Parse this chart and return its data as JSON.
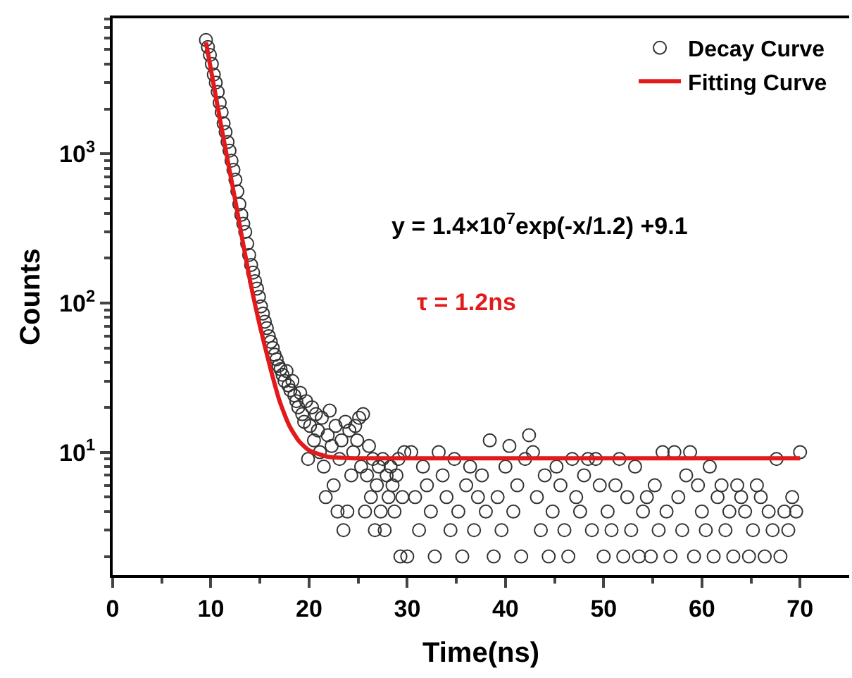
{
  "chart_data": {
    "type": "scatter",
    "xlabel": "Time(ns)",
    "ylabel": "Counts",
    "log": "y",
    "legend": "top right",
    "xlim": [
      0,
      75
    ],
    "xticks": [
      0,
      {
        "value": 5,
        "label": null
      },
      10,
      {
        "value": 15,
        "label": null
      },
      20,
      {
        "value": 25,
        "label": null
      },
      30,
      {
        "value": 35,
        "label": null
      },
      40,
      {
        "value": 45,
        "label": null
      },
      50,
      {
        "value": 55,
        "label": null
      },
      60,
      {
        "value": 65,
        "label": null
      },
      70
    ],
    "ylim": [
      1.5,
      8100
    ],
    "yticks": [
      {
        "value": 2,
        "label": null
      },
      {
        "value": 3,
        "label": null
      },
      {
        "value": 4,
        "label": null
      },
      {
        "value": 5,
        "label": null
      },
      {
        "value": 6,
        "label": null
      },
      {
        "value": 7,
        "label": null
      },
      {
        "value": 8,
        "label": null
      },
      {
        "value": 9,
        "label": null
      },
      {
        "value": 10,
        "label": "10$^{1}$"
      },
      {
        "value": 20,
        "label": null
      },
      {
        "value": 30,
        "label": null
      },
      {
        "value": 40,
        "label": null
      },
      {
        "value": 50,
        "label": null
      },
      {
        "value": 60,
        "label": null
      },
      {
        "value": 70,
        "label": null
      },
      {
        "value": 80,
        "label": null
      },
      {
        "value": 90,
        "label": null
      },
      {
        "value": 100,
        "label": "10$^{2}$"
      },
      {
        "value": 200,
        "label": null
      },
      {
        "value": 300,
        "label": null
      },
      {
        "value": 400,
        "label": null
      },
      {
        "value": 500,
        "label": null
      },
      {
        "value": 600,
        "label": null
      },
      {
        "value": 700,
        "label": null
      },
      {
        "value": 800,
        "label": null
      },
      {
        "value": 900,
        "label": null
      },
      {
        "value": 1000,
        "label": "10$^{3}$"
      },
      {
        "value": 2000,
        "label": null
      },
      {
        "value": 3000,
        "label": null
      },
      {
        "value": 4000,
        "label": null
      },
      {
        "value": 5000,
        "label": null
      },
      {
        "value": 6000,
        "label": null
      },
      {
        "value": 7000,
        "label": null
      },
      {
        "value": 8000,
        "label": null
      }
    ],
    "annotations": [
      "y = 1.4×10$^{7}$exp(-x/1.2) +9.1",
      "τ = 1.2ns"
    ],
    "series": [
      {
        "name": "Decay Curve",
        "marker": "circle",
        "color": "#333333",
        "x": [
          9.5,
          9.7,
          9.9,
          10.1,
          10.3,
          10.5,
          10.7,
          10.9,
          11.1,
          11.3,
          11.5,
          11.7,
          11.9,
          12.1,
          12.3,
          12.5,
          12.7,
          12.9,
          13.1,
          13.3,
          13.5,
          13.7,
          13.9,
          14.1,
          14.3,
          14.5,
          14.7,
          14.9,
          15.1,
          15.3,
          15.5,
          15.7,
          15.9,
          16.1,
          16.3,
          16.5,
          16.7,
          16.9,
          17.1,
          17.3,
          17.5,
          17.7,
          17.9,
          18.1,
          18.3,
          18.5,
          18.7,
          18.9,
          19.1,
          19.3,
          19.5,
          19.7,
          19.9,
          20.1,
          20.3,
          20.5,
          20.7,
          20.9,
          21.1,
          21.3,
          21.5,
          21.7,
          21.9,
          22.1,
          22.3,
          22.5,
          22.7,
          22.9,
          23.1,
          23.3,
          23.5,
          23.7,
          23.9,
          24.1,
          24.3,
          24.5,
          24.7,
          24.9,
          25.1,
          25.3,
          25.5,
          25.7,
          25.9,
          26.1,
          26.3,
          26.5,
          26.7,
          26.9,
          27.1,
          27.3,
          27.5,
          27.7,
          27.9,
          28.1,
          28.3,
          28.5,
          28.7,
          28.9,
          29.1,
          29.3,
          29.5,
          29.7,
          30.0,
          30.4,
          30.8,
          31.2,
          31.6,
          32.0,
          32.4,
          32.8,
          33.2,
          33.6,
          34.0,
          34.4,
          34.8,
          35.2,
          35.6,
          36.0,
          36.4,
          36.8,
          37.2,
          37.6,
          38.0,
          38.4,
          38.8,
          39.2,
          39.6,
          40.0,
          40.4,
          40.8,
          41.2,
          41.6,
          42.0,
          42.4,
          42.8,
          43.2,
          43.6,
          44.0,
          44.4,
          44.8,
          45.2,
          45.6,
          46.0,
          46.4,
          46.8,
          47.2,
          47.6,
          48.0,
          48.4,
          48.8,
          49.2,
          49.6,
          50.0,
          50.4,
          50.8,
          51.2,
          51.6,
          52.0,
          52.4,
          52.8,
          53.2,
          53.6,
          54.0,
          54.4,
          54.8,
          55.2,
          55.6,
          56.0,
          56.4,
          56.8,
          57.2,
          57.6,
          58.0,
          58.4,
          58.8,
          59.2,
          59.6,
          60.0,
          60.4,
          60.8,
          61.2,
          61.6,
          62.0,
          62.4,
          62.8,
          63.2,
          63.6,
          64.0,
          64.4,
          64.8,
          65.2,
          65.6,
          66.0,
          66.4,
          66.8,
          67.2,
          67.6,
          68.0,
          68.4,
          68.8,
          69.2,
          69.6,
          70.0
        ],
        "values": [
          5800,
          5200,
          4600,
          4000,
          3400,
          3000,
          2600,
          2200,
          1900,
          1600,
          1400,
          1200,
          1050,
          900,
          780,
          670,
          560,
          460,
          390,
          340,
          300,
          250,
          210,
          180,
          160,
          140,
          125,
          110,
          95,
          85,
          75,
          68,
          60,
          55,
          50,
          45,
          42,
          38,
          36,
          33,
          30,
          35,
          28,
          26,
          30,
          24,
          22,
          20,
          25,
          18,
          16,
          22,
          9,
          15,
          20,
          12,
          18,
          14,
          10,
          17,
          8,
          5,
          13,
          19,
          11,
          6,
          15,
          4,
          9,
          12,
          3,
          16,
          4,
          14,
          7,
          10,
          15,
          12,
          17,
          8,
          18,
          4,
          7,
          11,
          5,
          9,
          3,
          6,
          8,
          4,
          9,
          3,
          7,
          5,
          8,
          6,
          4,
          7,
          9,
          2,
          5,
          10,
          2,
          10,
          5,
          3,
          8,
          6,
          4,
          2,
          10,
          7,
          5,
          3,
          9,
          4,
          2,
          6,
          8,
          3,
          5,
          7,
          4,
          12,
          2,
          5,
          3,
          8,
          11,
          4,
          6,
          2,
          9,
          13,
          10,
          5,
          3,
          7,
          2,
          4,
          8,
          6,
          3,
          2,
          9,
          5,
          4,
          7,
          9,
          3,
          9,
          6,
          2,
          4,
          3,
          6,
          9,
          2,
          5,
          3,
          8,
          2,
          4,
          5,
          2,
          6,
          3,
          10,
          4,
          2,
          10,
          5,
          3,
          7,
          10,
          2,
          6,
          4,
          3,
          8,
          2,
          5,
          6,
          3,
          4,
          2,
          6,
          5,
          4,
          2,
          3,
          6,
          5,
          2,
          4,
          3,
          9,
          2,
          4,
          3,
          5,
          4,
          10
        ]
      },
      {
        "name": "Fitting Curve",
        "type": "line",
        "marker": "none",
        "line_style": "solid",
        "color": "#e31a1c",
        "x": [
          9.5,
          11,
          12.5,
          14,
          15,
          16,
          17,
          18,
          19,
          20,
          22,
          25,
          70
        ],
        "values": [
          5600,
          1600,
          480,
          140,
          70,
          38,
          22,
          15,
          11.8,
          10.3,
          9.3,
          9.1,
          9.1
        ]
      }
    ]
  }
}
